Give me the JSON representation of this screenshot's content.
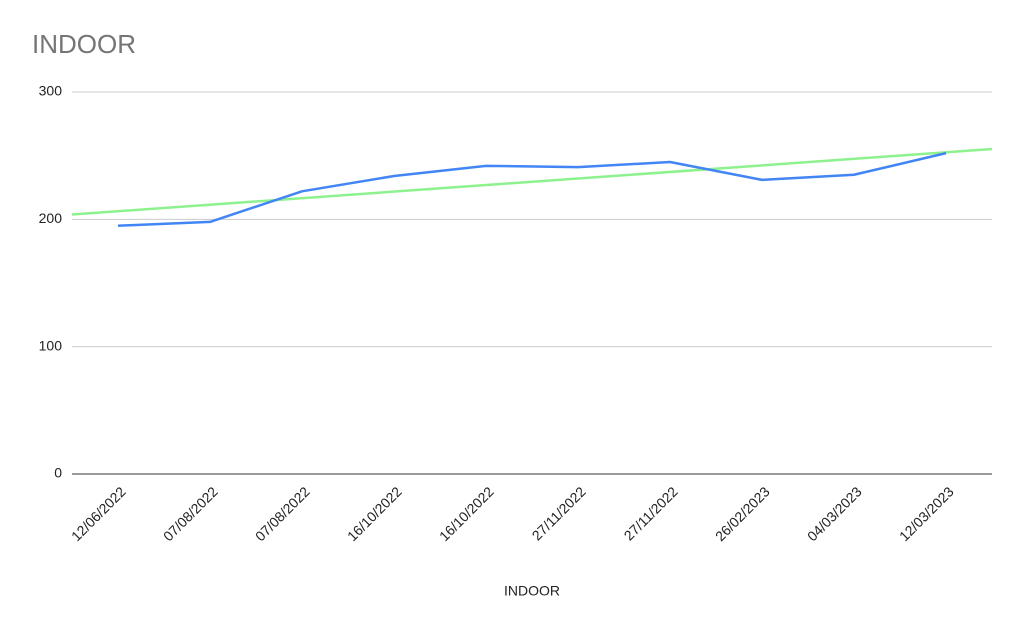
{
  "chart_data": {
    "type": "line",
    "title": "INDOOR",
    "x_label": "INDOOR",
    "categories": [
      "12/06/2022",
      "07/08/2022",
      "07/08/2022",
      "16/10/2022",
      "16/10/2022",
      "27/11/2022",
      "27/11/2022",
      "26/02/2023",
      "04/03/2023",
      "12/03/2023"
    ],
    "series": [
      {
        "name": "INDOOR",
        "color": "#4285f4",
        "values": [
          195,
          198,
          222,
          234,
          242,
          241,
          245,
          231,
          235,
          252
        ]
      }
    ],
    "trendline": true,
    "trendline_color": "#8df28d",
    "ylim": [
      0,
      300
    ],
    "yticks": [
      0,
      100,
      200,
      300
    ],
    "grid": true
  }
}
